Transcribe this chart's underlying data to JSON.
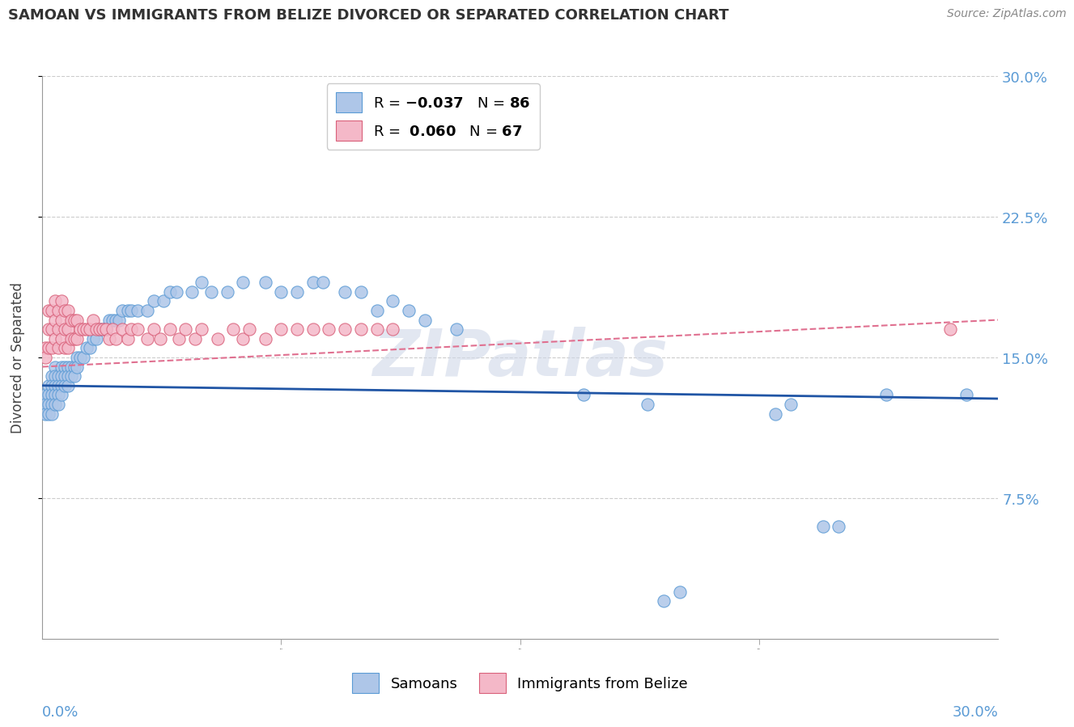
{
  "title": "SAMOAN VS IMMIGRANTS FROM BELIZE DIVORCED OR SEPARATED CORRELATION CHART",
  "source": "Source: ZipAtlas.com",
  "ylabel": "Divorced or Separated",
  "legend_labels": [
    "Samoans",
    "Immigrants from Belize"
  ],
  "samoan_color": "#aec6e8",
  "samoan_edge": "#5b9bd5",
  "belize_color": "#f4b8c8",
  "belize_edge": "#d9607a",
  "samoan_line_color": "#2055a5",
  "belize_line_color": "#e07090",
  "tick_color": "#5b9bd5",
  "grid_color": "#cccccc",
  "background_color": "#ffffff",
  "watermark": "ZIPatlas",
  "xlim": [
    0.0,
    0.3
  ],
  "ylim": [
    0.0,
    0.3
  ],
  "yticks": [
    0.075,
    0.15,
    0.225,
    0.3
  ],
  "ytick_labels": [
    "7.5%",
    "15.0%",
    "22.5%",
    "30.0%"
  ],
  "xtick_left": "0.0%",
  "xtick_right": "30.0%",
  "samoan_R": -0.037,
  "samoan_N": 86,
  "belize_R": 0.06,
  "belize_N": 67,
  "samoan_x": [
    0.001,
    0.001,
    0.001,
    0.002,
    0.002,
    0.002,
    0.002,
    0.003,
    0.003,
    0.003,
    0.003,
    0.003,
    0.004,
    0.004,
    0.004,
    0.004,
    0.004,
    0.005,
    0.005,
    0.005,
    0.005,
    0.006,
    0.006,
    0.006,
    0.006,
    0.007,
    0.007,
    0.007,
    0.008,
    0.008,
    0.008,
    0.009,
    0.009,
    0.01,
    0.01,
    0.011,
    0.011,
    0.012,
    0.013,
    0.014,
    0.015,
    0.016,
    0.017,
    0.018,
    0.019,
    0.02,
    0.021,
    0.022,
    0.023,
    0.024,
    0.025,
    0.027,
    0.028,
    0.03,
    0.033,
    0.035,
    0.038,
    0.04,
    0.042,
    0.047,
    0.05,
    0.053,
    0.058,
    0.063,
    0.07,
    0.075,
    0.08,
    0.085,
    0.088,
    0.095,
    0.1,
    0.105,
    0.11,
    0.115,
    0.12,
    0.13,
    0.17,
    0.19,
    0.23,
    0.235,
    0.245,
    0.25,
    0.265,
    0.29,
    0.195,
    0.2
  ],
  "samoan_y": [
    0.13,
    0.125,
    0.12,
    0.135,
    0.13,
    0.125,
    0.12,
    0.14,
    0.135,
    0.13,
    0.125,
    0.12,
    0.145,
    0.14,
    0.135,
    0.13,
    0.125,
    0.14,
    0.135,
    0.13,
    0.125,
    0.145,
    0.14,
    0.135,
    0.13,
    0.145,
    0.14,
    0.135,
    0.145,
    0.14,
    0.135,
    0.145,
    0.14,
    0.145,
    0.14,
    0.15,
    0.145,
    0.15,
    0.15,
    0.155,
    0.155,
    0.16,
    0.16,
    0.165,
    0.165,
    0.165,
    0.17,
    0.17,
    0.17,
    0.17,
    0.175,
    0.175,
    0.175,
    0.175,
    0.175,
    0.18,
    0.18,
    0.185,
    0.185,
    0.185,
    0.19,
    0.185,
    0.185,
    0.19,
    0.19,
    0.185,
    0.185,
    0.19,
    0.19,
    0.185,
    0.185,
    0.175,
    0.18,
    0.175,
    0.17,
    0.165,
    0.13,
    0.125,
    0.12,
    0.125,
    0.06,
    0.06,
    0.13,
    0.13,
    0.02,
    0.025
  ],
  "belize_x": [
    0.001,
    0.001,
    0.002,
    0.002,
    0.002,
    0.003,
    0.003,
    0.003,
    0.004,
    0.004,
    0.004,
    0.005,
    0.005,
    0.005,
    0.006,
    0.006,
    0.006,
    0.007,
    0.007,
    0.007,
    0.008,
    0.008,
    0.008,
    0.009,
    0.009,
    0.01,
    0.01,
    0.011,
    0.011,
    0.012,
    0.013,
    0.014,
    0.015,
    0.016,
    0.017,
    0.018,
    0.019,
    0.02,
    0.021,
    0.022,
    0.023,
    0.025,
    0.027,
    0.028,
    0.03,
    0.033,
    0.035,
    0.037,
    0.04,
    0.043,
    0.045,
    0.048,
    0.05,
    0.055,
    0.06,
    0.063,
    0.065,
    0.07,
    0.075,
    0.08,
    0.085,
    0.09,
    0.095,
    0.1,
    0.105,
    0.11,
    0.285
  ],
  "belize_y": [
    0.155,
    0.15,
    0.175,
    0.165,
    0.155,
    0.175,
    0.165,
    0.155,
    0.18,
    0.17,
    0.16,
    0.175,
    0.165,
    0.155,
    0.18,
    0.17,
    0.16,
    0.175,
    0.165,
    0.155,
    0.175,
    0.165,
    0.155,
    0.17,
    0.16,
    0.17,
    0.16,
    0.17,
    0.16,
    0.165,
    0.165,
    0.165,
    0.165,
    0.17,
    0.165,
    0.165,
    0.165,
    0.165,
    0.16,
    0.165,
    0.16,
    0.165,
    0.16,
    0.165,
    0.165,
    0.16,
    0.165,
    0.16,
    0.165,
    0.16,
    0.165,
    0.16,
    0.165,
    0.16,
    0.165,
    0.16,
    0.165,
    0.16,
    0.165,
    0.165,
    0.165,
    0.165,
    0.165,
    0.165,
    0.165,
    0.165,
    0.165
  ]
}
